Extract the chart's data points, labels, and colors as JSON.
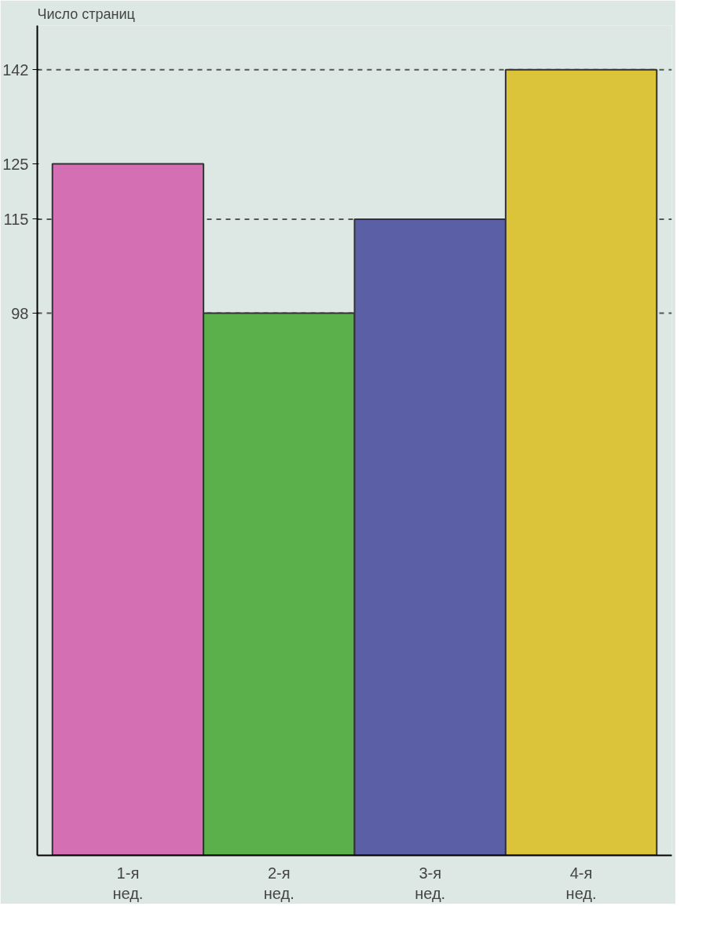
{
  "chart_data": {
    "type": "bar",
    "ylabel": "Число страниц",
    "categories": [
      "1-я\nнед.",
      "2-я\nнед.",
      "3-я\nнед.",
      "4-я\nнед."
    ],
    "values": [
      125,
      98,
      115,
      142
    ],
    "colors": [
      "#d46fb4",
      "#5cb04c",
      "#5a5fa6",
      "#dcc43a"
    ],
    "ylim": [
      0,
      150
    ],
    "yticks": [
      98,
      115,
      125,
      142
    ],
    "grid": false,
    "ref_lines": [
      {
        "axis": "y",
        "value": 142,
        "line_style": "dashed",
        "color": "#555555"
      },
      {
        "axis": "y",
        "value": 115,
        "line_style": "dashed",
        "color": "#555555"
      },
      {
        "axis": "y",
        "value": 98,
        "line_style": "dashed",
        "color": "#555555"
      }
    ]
  }
}
